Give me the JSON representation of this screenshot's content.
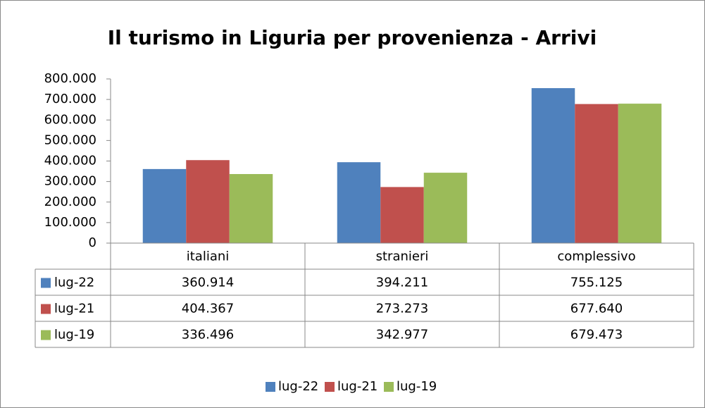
{
  "chart_data": {
    "type": "bar",
    "title": "Il turismo in Liguria per provenienza - Arrivi",
    "categories": [
      "italiani",
      "stranieri",
      "complessivo"
    ],
    "series": [
      {
        "name": "lug-22",
        "color": "#4f81bd",
        "values": [
          360914,
          394211,
          755125
        ],
        "value_labels": [
          "360.914",
          "394.211",
          "755.125"
        ]
      },
      {
        "name": "lug-21",
        "color": "#c0504d",
        "values": [
          404367,
          273273,
          677640
        ],
        "value_labels": [
          "404.367",
          "273.273",
          "677.640"
        ]
      },
      {
        "name": "lug-19",
        "color": "#9bbb59",
        "values": [
          336496,
          342977,
          679473
        ],
        "value_labels": [
          "336.496",
          "342.977",
          "679.473"
        ]
      }
    ],
    "ylim": [
      0,
      800000
    ],
    "yticks": [
      0,
      {
        "value": 100000,
        "label": "100.000"
      },
      {
        "value": 200000,
        "label": "200.000"
      },
      {
        "value": 300000,
        "label": "300.000"
      },
      {
        "value": 400000,
        "label": "400.000"
      },
      {
        "value": 500000,
        "label": "500.000"
      },
      {
        "value": 600000,
        "label": "600.000"
      },
      {
        "value": 700000,
        "label": "700.000"
      },
      {
        "value": 800000,
        "label": "800.000"
      }
    ],
    "grid": false,
    "legend": "bottom"
  }
}
